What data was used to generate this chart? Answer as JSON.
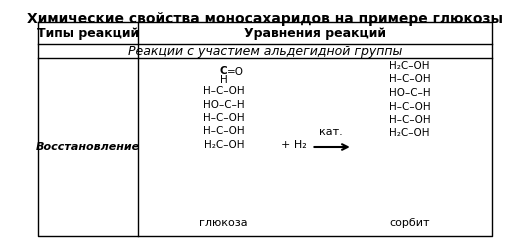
{
  "title": "Химические свойства моносахаридов на примере глюкозы",
  "col1_header": "Типы реакций",
  "col2_header": "Уравнения реакций",
  "subheader": "Реакции с участием альдегидной группы",
  "row1_label": "Восстановление",
  "bg_color": "#ffffff",
  "border_color": "#000000",
  "title_fontsize": 10,
  "header_fontsize": 9,
  "subheader_fontsize": 9,
  "cell_fontsize": 8,
  "chem_fontsize": 7.5,
  "glucose_lines": [
    "C=O",
    "|",
    "H–C–OH",
    "|",
    "HO–C–H",
    "|",
    "H–C–OH",
    "|",
    "H–C–OH",
    "|",
    "H₂C–OH"
  ],
  "sorbit_lines": [
    "H₂C–OH",
    "|",
    "H–C–OH",
    "|",
    "HO–C–H",
    "|",
    "H–C–OH",
    "|",
    "H–C–OH",
    "|",
    "H₂C–OH"
  ],
  "reagent": "+ H₂",
  "arrow_label": "кат.",
  "label_glucose": "глюкоза",
  "label_sorbit": "сорбит"
}
